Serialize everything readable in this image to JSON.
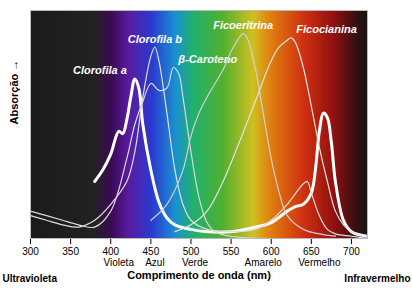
{
  "chart_data": {
    "type": "line",
    "xlabel": "Comprimento de onda (nm)",
    "ylabel": "Absorção →",
    "xlim": [
      300,
      720
    ],
    "xticks": [
      300,
      350,
      400,
      450,
      500,
      550,
      600,
      650,
      700
    ],
    "ylim": [
      0,
      100
    ],
    "yticks": [],
    "tick_labels": "x",
    "grid": false,
    "annotations": [
      {
        "text": "Violeta",
        "x": 410
      },
      {
        "text": "Azul",
        "x": 455
      },
      {
        "text": "Verde",
        "x": 505
      },
      {
        "text": "Amarelo",
        "x": 590
      },
      {
        "text": "Vermelho",
        "x": 660
      }
    ],
    "region_labels": {
      "left": "Ultravioleta",
      "right": "Infravermelho"
    },
    "series": [
      {
        "name": "Clorofila a",
        "color": "#ffffff",
        "x": [
          380,
          390,
          400,
          410,
          415,
          420,
          425,
          430,
          435,
          440,
          450,
          460,
          470,
          480,
          500,
          520,
          550,
          580,
          600,
          620,
          630,
          640,
          650,
          655,
          660,
          665,
          670,
          675,
          680,
          690,
          700,
          720
        ],
        "values": [
          25,
          30,
          37,
          47,
          46,
          52,
          62,
          70,
          66,
          50,
          30,
          16,
          9,
          6,
          4,
          3,
          3,
          5,
          7,
          12,
          14,
          15,
          20,
          30,
          47,
          55,
          53,
          42,
          25,
          8,
          3,
          1
        ]
      },
      {
        "name": "Clorofila b",
        "color": "#dddddd",
        "x": [
          300,
          320,
          340,
          360,
          380,
          400,
          420,
          430,
          440,
          450,
          455,
          460,
          470,
          480,
          490,
          500,
          520,
          550,
          580,
          600,
          620,
          640,
          645,
          650,
          660,
          670,
          680,
          700,
          720
        ],
        "values": [
          10,
          8,
          6,
          5,
          8,
          15,
          25,
          38,
          62,
          80,
          84,
          78,
          55,
          30,
          15,
          8,
          4,
          3,
          4,
          8,
          15,
          24,
          25,
          20,
          10,
          4,
          2,
          1,
          0
        ]
      },
      {
        "name": "β-Caroteno",
        "color": "#d8d8d8",
        "x": [
          300,
          320,
          340,
          360,
          380,
          400,
          420,
          430,
          440,
          450,
          460,
          470,
          478,
          485,
          490,
          500,
          510,
          520,
          530,
          550,
          600
        ],
        "values": [
          12,
          10,
          8,
          6,
          5,
          12,
          35,
          50,
          60,
          68,
          65,
          66,
          75,
          72,
          62,
          38,
          18,
          7,
          3,
          1,
          0
        ]
      },
      {
        "name": "Ficoeritrina",
        "color": "#d0d0d0",
        "x": [
          450,
          470,
          490,
          500,
          510,
          520,
          530,
          540,
          550,
          560,
          565,
          570,
          580,
          590,
          600,
          610,
          620,
          640,
          660,
          680
        ],
        "values": [
          8,
          15,
          30,
          45,
          55,
          62,
          68,
          74,
          82,
          88,
          90,
          88,
          75,
          55,
          35,
          20,
          10,
          4,
          2,
          1
        ]
      },
      {
        "name": "Ficocianina",
        "color": "#e2e2e2",
        "x": [
          480,
          500,
          520,
          540,
          560,
          580,
          600,
          610,
          620,
          625,
          630,
          640,
          650,
          660,
          670,
          680,
          690,
          700,
          720
        ],
        "values": [
          3,
          6,
          12,
          25,
          42,
          60,
          78,
          84,
          87,
          88,
          86,
          75,
          58,
          40,
          25,
          12,
          6,
          3,
          1
        ]
      }
    ]
  }
}
